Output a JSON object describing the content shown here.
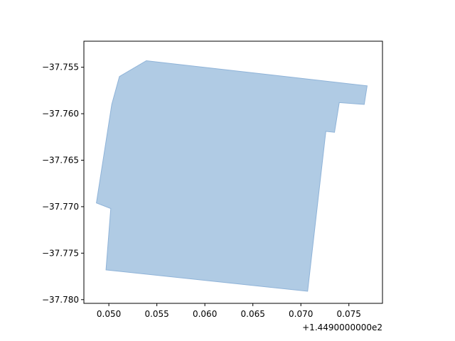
{
  "chart_data": {
    "type": "area",
    "title": "",
    "xlabel": "",
    "ylabel": "",
    "x_offset_text": "+1.4490000000e2",
    "x_offset": 144.9,
    "xlim": [
      0.0474,
      0.0785
    ],
    "ylim": [
      -37.7804,
      -37.7522
    ],
    "xticks": [
      0.05,
      0.055,
      0.06,
      0.065,
      0.07,
      0.075
    ],
    "xtick_labels": [
      "0.050",
      "0.055",
      "0.060",
      "0.065",
      "0.070",
      "0.075"
    ],
    "yticks": [
      -37.755,
      -37.76,
      -37.765,
      -37.77,
      -37.775,
      -37.78
    ],
    "ytick_labels": [
      "−37.755",
      "−37.760",
      "−37.765",
      "−37.770",
      "−37.775",
      "−37.780"
    ],
    "grid": false,
    "series": [
      {
        "fill_color": "#b0cbe4",
        "edge_color": "#8fb3d8",
        "points": [
          {
            "x": 0.0539,
            "y": -37.7543
          },
          {
            "x": 0.0769,
            "y": -37.757
          },
          {
            "x": 0.0766,
            "y": -37.759
          },
          {
            "x": 0.074,
            "y": -37.7588
          },
          {
            "x": 0.0735,
            "y": -37.762
          },
          {
            "x": 0.0726,
            "y": -37.7619
          },
          {
            "x": 0.0707,
            "y": -37.7791
          },
          {
            "x": 0.0497,
            "y": -37.7768
          },
          {
            "x": 0.0502,
            "y": -37.7702
          },
          {
            "x": 0.0487,
            "y": -37.7696
          },
          {
            "x": 0.0503,
            "y": -37.759
          },
          {
            "x": 0.0511,
            "y": -37.756
          }
        ]
      }
    ]
  }
}
